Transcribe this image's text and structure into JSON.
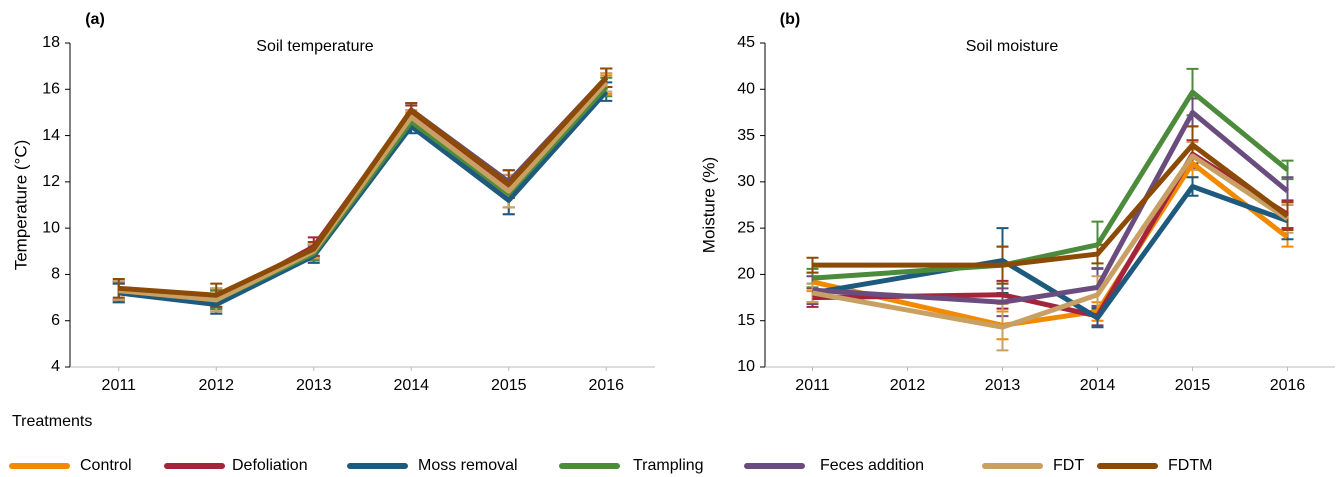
{
  "legend": {
    "title": "Treatments"
  },
  "chart_data": [
    {
      "type": "line",
      "panel_label": "(a)",
      "title": "Soil temperature",
      "y_label": "Temperature (°C)",
      "x": [
        2011,
        2012,
        2013,
        2014,
        2015,
        2016
      ],
      "xlim": [
        2010.5,
        2016.5
      ],
      "xticks": [
        2011,
        2012,
        2013,
        2014,
        2015,
        2016
      ],
      "ylim": [
        4,
        18
      ],
      "yticks": [
        4,
        6,
        8,
        10,
        12,
        14,
        16,
        18
      ],
      "series": [
        {
          "name": "Control",
          "color": "#f28a00",
          "values": [
            7.3,
            6.9,
            9.0,
            14.7,
            11.3,
            16.2
          ],
          "errors": [
            0.4,
            0.5,
            0.3,
            0.3,
            0.7,
            0.4
          ]
        },
        {
          "name": "Defoliation",
          "color": "#a4243b",
          "values": [
            7.2,
            6.9,
            9.2,
            15.0,
            11.8,
            16.5
          ],
          "errors": [
            0.4,
            0.4,
            0.4,
            0.3,
            0.5,
            0.4
          ]
        },
        {
          "name": "Moss removal",
          "color": "#1d5a7e",
          "values": [
            7.2,
            6.7,
            8.8,
            14.4,
            11.2,
            15.9
          ],
          "errors": [
            0.4,
            0.4,
            0.3,
            0.3,
            0.6,
            0.4
          ]
        },
        {
          "name": "Trampling",
          "color": "#4b8b3b",
          "values": [
            7.3,
            6.9,
            8.9,
            14.6,
            11.5,
            16.1
          ],
          "errors": [
            0.4,
            0.4,
            0.3,
            0.3,
            0.6,
            0.4
          ]
        },
        {
          "name": "Feces addition",
          "color": "#6a4c7e",
          "values": [
            7.3,
            7.0,
            9.0,
            15.1,
            12.0,
            16.5
          ],
          "errors": [
            0.4,
            0.4,
            0.3,
            0.3,
            0.5,
            0.4
          ]
        },
        {
          "name": "FDT",
          "color": "#c9a063",
          "values": [
            7.3,
            6.9,
            9.0,
            14.8,
            11.6,
            16.3
          ],
          "errors": [
            0.4,
            0.5,
            0.3,
            0.3,
            0.7,
            0.4
          ]
        },
        {
          "name": "FDTM",
          "color": "#8b4a06",
          "values": [
            7.4,
            7.1,
            9.1,
            15.1,
            11.9,
            16.5
          ],
          "errors": [
            0.4,
            0.5,
            0.3,
            0.3,
            0.6,
            0.4
          ]
        }
      ]
    },
    {
      "type": "line",
      "panel_label": "(b)",
      "title": "Soil moisture",
      "y_label": "Moisture (%)",
      "x": [
        2011,
        2013,
        2014,
        2015,
        2016
      ],
      "xlim": [
        2010.5,
        2016.5
      ],
      "xticks": [
        2011,
        2012,
        2013,
        2014,
        2015,
        2016
      ],
      "ylim": [
        10,
        45
      ],
      "yticks": [
        10,
        15,
        20,
        25,
        30,
        35,
        40,
        45
      ],
      "series": [
        {
          "name": "Control",
          "color": "#f28a00",
          "values": [
            19.2,
            14.5,
            16.0,
            32.0,
            24.0
          ],
          "errors": [
            1.0,
            1.5,
            1.0,
            1.5,
            1.0
          ]
        },
        {
          "name": "Defoliation",
          "color": "#a4243b",
          "values": [
            17.5,
            17.8,
            15.5,
            33.0,
            26.5
          ],
          "errors": [
            1.0,
            1.5,
            1.0,
            1.5,
            1.5
          ]
        },
        {
          "name": "Moss removal",
          "color": "#1d5a7e",
          "values": [
            18.0,
            21.5,
            15.3,
            29.5,
            25.8
          ],
          "errors": [
            1.0,
            3.5,
            1.0,
            1.0,
            2.0
          ]
        },
        {
          "name": "Trampling",
          "color": "#4b8b3b",
          "values": [
            19.6,
            21.0,
            23.2,
            39.7,
            31.3
          ],
          "errors": [
            1.0,
            2.0,
            2.5,
            2.5,
            1.0
          ]
        },
        {
          "name": "Feces addition",
          "color": "#6a4c7e",
          "values": [
            18.3,
            17.0,
            18.6,
            37.5,
            29.0
          ],
          "errors": [
            1.5,
            1.5,
            2.0,
            1.5,
            1.5
          ]
        },
        {
          "name": "FDT",
          "color": "#c9a063",
          "values": [
            18.0,
            14.3,
            17.8,
            32.8,
            26.0
          ],
          "errors": [
            1.0,
            2.5,
            2.0,
            1.5,
            1.5
          ]
        },
        {
          "name": "FDTM",
          "color": "#8b4a06",
          "values": [
            21.0,
            21.0,
            22.2,
            34.0,
            26.3
          ],
          "errors": [
            0.8,
            2.0,
            1.0,
            2.0,
            1.5
          ]
        }
      ]
    }
  ]
}
